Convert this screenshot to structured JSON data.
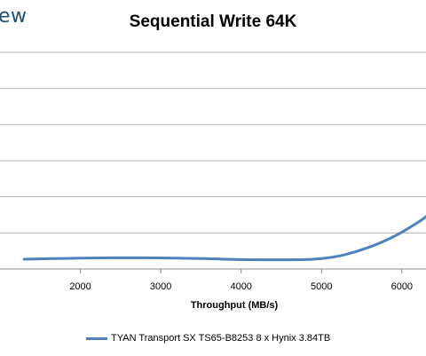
{
  "logo_text": "ew",
  "chart_data": {
    "type": "line",
    "title": "Sequential Write 64K",
    "xlabel": "Throughput (MB/s)",
    "ylabel": "",
    "xlim": [
      1000,
      6300
    ],
    "x_ticks": [
      2000,
      3000,
      4000,
      5000,
      6000
    ],
    "y_gridlines": 7,
    "grid": "horizontal",
    "legend_position": "bottom",
    "series": [
      {
        "name": "TYAN Transport SX TS65-B8253 8 x Hynix 3.84TB",
        "color": "#4f81bd",
        "points": [
          [
            1300,
            0.27
          ],
          [
            1600,
            0.285
          ],
          [
            2000,
            0.3
          ],
          [
            2400,
            0.31
          ],
          [
            2800,
            0.31
          ],
          [
            3200,
            0.3
          ],
          [
            3600,
            0.285
          ],
          [
            4000,
            0.26
          ],
          [
            4400,
            0.255
          ],
          [
            4800,
            0.26
          ],
          [
            5050,
            0.3
          ],
          [
            5300,
            0.4
          ],
          [
            5600,
            0.61
          ],
          [
            5900,
            0.9
          ],
          [
            6200,
            1.29
          ],
          [
            6300,
            1.45
          ]
        ]
      }
    ]
  }
}
